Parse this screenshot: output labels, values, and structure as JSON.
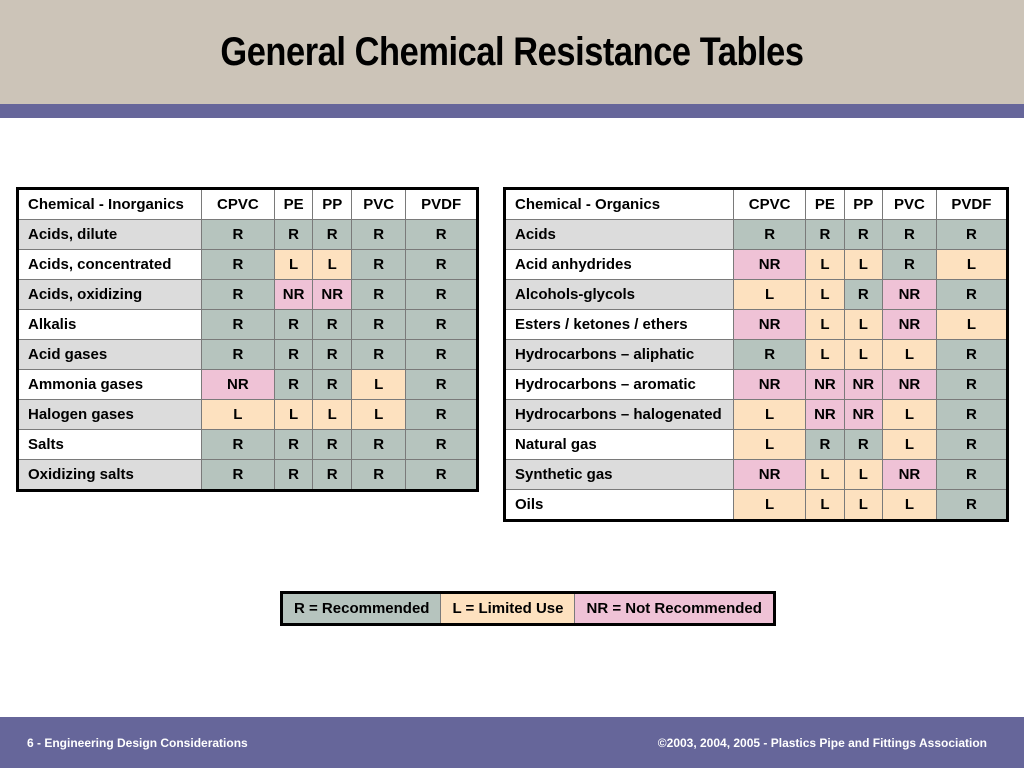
{
  "title": "General Chemical Resistance Tables",
  "colors": {
    "header_bg": "#ccc4b8",
    "accent_stripe": "#66669a",
    "footer_bg": "#66669a",
    "R": "#b6c4be",
    "L": "#fde1bf",
    "NR": "#efc2d6",
    "row_shade": "#dcdcdc"
  },
  "inorganics": {
    "header": [
      "Chemical - Inorganics",
      "CPVC",
      "PE",
      "PP",
      "PVC",
      "PVDF"
    ],
    "rows": [
      {
        "name": "Acids, dilute",
        "values": [
          "R",
          "R",
          "R",
          "R",
          "R"
        ]
      },
      {
        "name": "Acids, concentrated",
        "values": [
          "R",
          "L",
          "L",
          "R",
          "R"
        ]
      },
      {
        "name": "Acids, oxidizing",
        "values": [
          "R",
          "NR",
          "NR",
          "R",
          "R"
        ]
      },
      {
        "name": "Alkalis",
        "values": [
          "R",
          "R",
          "R",
          "R",
          "R"
        ]
      },
      {
        "name": "Acid gases",
        "values": [
          "R",
          "R",
          "R",
          "R",
          "R"
        ]
      },
      {
        "name": "Ammonia gases",
        "values": [
          "NR",
          "R",
          "R",
          "L",
          "R"
        ]
      },
      {
        "name": "Halogen gases",
        "values": [
          "L",
          "L",
          "L",
          "L",
          "R"
        ]
      },
      {
        "name": "Salts",
        "values": [
          "R",
          "R",
          "R",
          "R",
          "R"
        ]
      },
      {
        "name": "Oxidizing salts",
        "values": [
          "R",
          "R",
          "R",
          "R",
          "R"
        ]
      }
    ]
  },
  "organics": {
    "header": [
      "Chemical - Organics",
      "CPVC",
      "PE",
      "PP",
      "PVC",
      "PVDF"
    ],
    "rows": [
      {
        "name": "Acids",
        "values": [
          "R",
          "R",
          "R",
          "R",
          "R"
        ]
      },
      {
        "name": "Acid anhydrides",
        "values": [
          "NR",
          "L",
          "L",
          "R",
          "L"
        ]
      },
      {
        "name": "Alcohols-glycols",
        "values": [
          "L",
          "L",
          "R",
          "NR",
          "R"
        ]
      },
      {
        "name": "Esters / ketones / ethers",
        "values": [
          "NR",
          "L",
          "L",
          "NR",
          "L"
        ]
      },
      {
        "name": "Hydrocarbons – aliphatic",
        "values": [
          "R",
          "L",
          "L",
          "L",
          "R"
        ]
      },
      {
        "name": "Hydrocarbons – aromatic",
        "values": [
          "NR",
          "NR",
          "NR",
          "NR",
          "R"
        ]
      },
      {
        "name": "Hydrocarbons – halogenated",
        "values": [
          "L",
          "NR",
          "NR",
          "L",
          "R"
        ]
      },
      {
        "name": "Natural gas",
        "values": [
          "L",
          "R",
          "R",
          "L",
          "R"
        ]
      },
      {
        "name": "Synthetic gas",
        "values": [
          "NR",
          "L",
          "L",
          "NR",
          "R"
        ]
      },
      {
        "name": "Oils",
        "values": [
          "L",
          "L",
          "L",
          "L",
          "R"
        ]
      }
    ]
  },
  "legend": [
    {
      "code": "R",
      "label": "R = Recommended"
    },
    {
      "code": "L",
      "label": "L = Limited Use"
    },
    {
      "code": "NR",
      "label": "NR = Not Recommended"
    }
  ],
  "footer": {
    "left": "6 - Engineering Design Considerations",
    "right": "©2003, 2004, 2005 - Plastics Pipe and Fittings Association"
  }
}
